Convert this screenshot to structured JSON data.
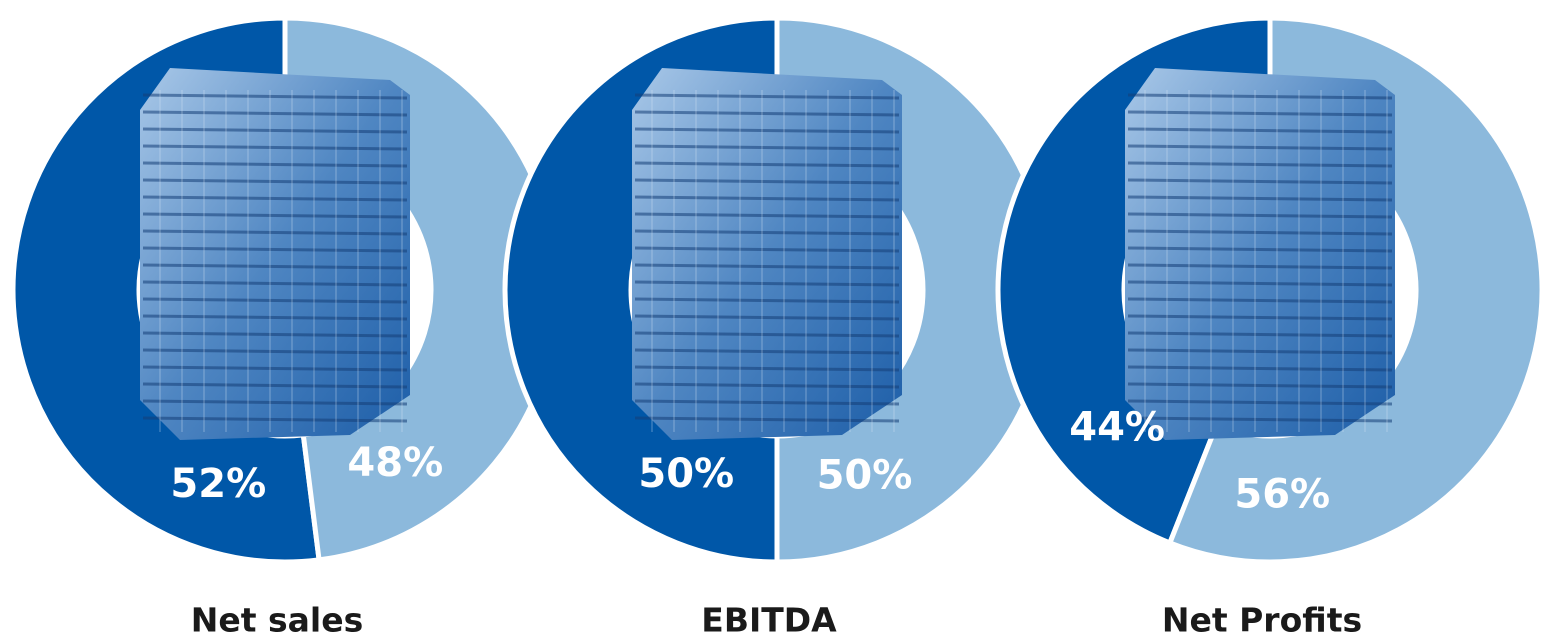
{
  "chart_data": [
    {
      "type": "pie",
      "title": "Net sales",
      "values": [
        52,
        48
      ],
      "value_labels": [
        "52%",
        "48%"
      ],
      "colors": [
        "#0057a8",
        "#8cb9dc"
      ]
    },
    {
      "type": "pie",
      "title": "EBITDA",
      "values": [
        50,
        50
      ],
      "value_labels": [
        "50%",
        "50%"
      ],
      "colors": [
        "#0057a8",
        "#8cb9dc"
      ]
    },
    {
      "type": "pie",
      "title": "Net Profits",
      "values": [
        44,
        56
      ],
      "value_labels": [
        "44%",
        "56%"
      ],
      "colors": [
        "#0057a8",
        "#8cb9dc"
      ]
    }
  ]
}
